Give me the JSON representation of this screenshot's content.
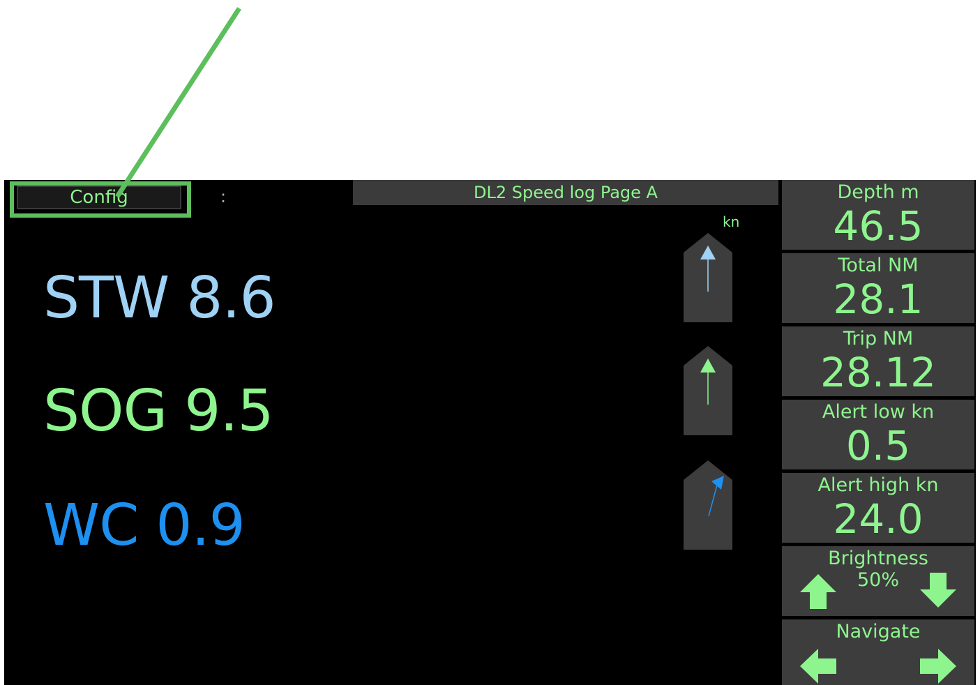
{
  "topbar": {
    "config_label": "Config",
    "separator": ":",
    "page_title": "DL2 Speed log Page A"
  },
  "readouts": {
    "stw": "STW 8.6",
    "sog": "SOG 9.5",
    "wc": "WC 0.9"
  },
  "unit": "kn",
  "side_panel": {
    "depth": {
      "label": "Depth m",
      "value": "46.5"
    },
    "total": {
      "label": "Total NM",
      "value": "28.1"
    },
    "trip": {
      "label": "Trip NM",
      "value": "28.12"
    },
    "alert_low": {
      "label": "Alert low kn",
      "value": "0.5"
    },
    "alert_high": {
      "label": "Alert high kn",
      "value": "24.0"
    },
    "brightness": {
      "label": "Brightness",
      "value": "50%"
    },
    "navigate": {
      "label": "Navigate"
    }
  },
  "colors": {
    "accent_green": "#8ef58e",
    "stw_blue": "#9fd2f5",
    "wc_blue": "#1e90f0",
    "annotation_green": "#5cbf5c"
  },
  "icons": {
    "brightness_up": "arrow-up-icon",
    "brightness_down": "arrow-down-icon",
    "navigate_prev": "arrow-left-icon",
    "navigate_next": "arrow-right-icon"
  }
}
